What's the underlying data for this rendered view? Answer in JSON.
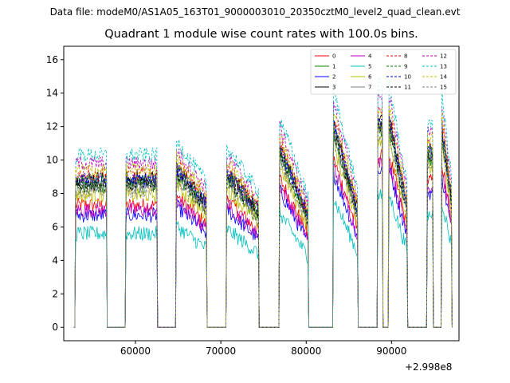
{
  "header": {
    "suptitle": "Data file: modeM0/AS1A05_163T01_9000003010_20350cztM0_level2_quad_clean.evt"
  },
  "chart_data": {
    "type": "line",
    "title": "Quadrant 1 module wise count rates with 100.0s bins.",
    "xlabel": "",
    "ylabel": "",
    "x_offset_label": "+2.998e8",
    "xlim": [
      51600,
      97900
    ],
    "ylim": [
      -0.8,
      16.8
    ],
    "xticks": [
      60000,
      70000,
      80000,
      90000
    ],
    "xtick_labels": [
      "60000",
      "70000",
      "80000",
      "90000"
    ],
    "yticks": [
      0,
      2,
      4,
      6,
      8,
      10,
      12,
      14,
      16
    ],
    "ytick_labels": [
      "0",
      "2",
      "4",
      "6",
      "8",
      "10",
      "12",
      "14",
      "16"
    ],
    "legend_position": "top-right",
    "segments": [
      {
        "start": 53000,
        "end": 56600,
        "rate": 1.0,
        "decay": 0.0
      },
      {
        "start": 58900,
        "end": 62500,
        "rate": 1.0,
        "decay": 0.0
      },
      {
        "start": 64800,
        "end": 68300,
        "rate": 1.08,
        "decay": 0.22
      },
      {
        "start": 70700,
        "end": 74400,
        "rate": 1.05,
        "decay": 0.25
      },
      {
        "start": 76900,
        "end": 80200,
        "rate": 1.22,
        "decay": 0.38
      },
      {
        "start": 83200,
        "end": 86000,
        "rate": 1.38,
        "decay": 0.42
      },
      {
        "start": 88400,
        "end": 88900,
        "rate": 1.4,
        "decay": 0.0
      },
      {
        "start": 89700,
        "end": 91800,
        "rate": 1.42,
        "decay": 0.42
      },
      {
        "start": 94200,
        "end": 94800,
        "rate": 1.2,
        "decay": 0.0
      },
      {
        "start": 95900,
        "end": 97000,
        "rate": 1.35,
        "decay": 0.35
      }
    ],
    "series": [
      {
        "name": "0",
        "color": "#ff0000",
        "dashed": false,
        "base": 7.3
      },
      {
        "name": "1",
        "color": "#008000",
        "dashed": false,
        "base": 8.4
      },
      {
        "name": "2",
        "color": "#0000ff",
        "dashed": false,
        "base": 6.7
      },
      {
        "name": "3",
        "color": "#000000",
        "dashed": false,
        "base": 8.9
      },
      {
        "name": "4",
        "color": "#bf00bf",
        "dashed": false,
        "base": 7.0
      },
      {
        "name": "5",
        "color": "#00bfbf",
        "dashed": false,
        "base": 5.6
      },
      {
        "name": "6",
        "color": "#bfbf00",
        "dashed": false,
        "base": 7.9
      },
      {
        "name": "7",
        "color": "#808080",
        "dashed": false,
        "base": 8.6
      },
      {
        "name": "8",
        "color": "#ff0000",
        "dashed": true,
        "base": 9.1
      },
      {
        "name": "9",
        "color": "#008000",
        "dashed": true,
        "base": 8.7
      },
      {
        "name": "10",
        "color": "#0000ff",
        "dashed": true,
        "base": 8.8
      },
      {
        "name": "11",
        "color": "#000000",
        "dashed": true,
        "base": 8.5
      },
      {
        "name": "12",
        "color": "#bf00bf",
        "dashed": true,
        "base": 9.8
      },
      {
        "name": "13",
        "color": "#00bfbf",
        "dashed": true,
        "base": 10.3
      },
      {
        "name": "14",
        "color": "#bfbf00",
        "dashed": true,
        "base": 9.4
      },
      {
        "name": "15",
        "color": "#808080",
        "dashed": true,
        "base": 8.2
      }
    ]
  }
}
